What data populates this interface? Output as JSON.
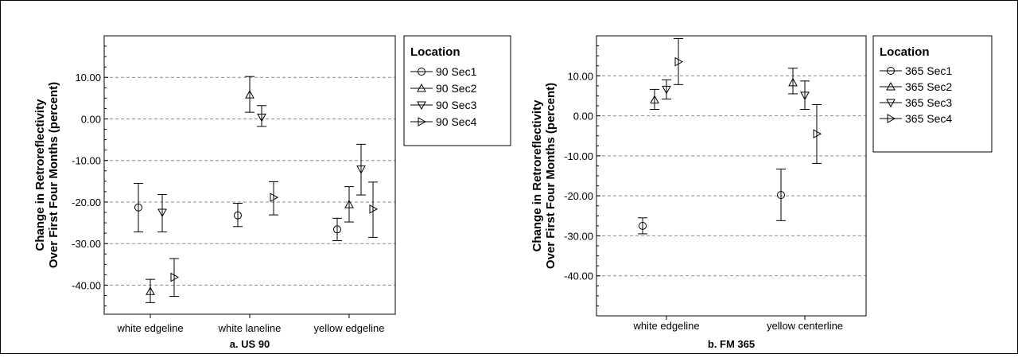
{
  "chart_data": [
    {
      "type": "scatter",
      "caption": "a. US 90",
      "ylabel": "Change in Retroreflectivity Over First Four Months (percent)",
      "ylim": [
        -47,
        20
      ],
      "yticks": [
        10,
        0,
        -10,
        -20,
        -30,
        -40
      ],
      "yticklabels": [
        "10.00",
        "0.00",
        "-10.00",
        "-20.00",
        "-30.00",
        "-40.00"
      ],
      "grid": true,
      "legend": {
        "title": "Location",
        "position": "right"
      },
      "categories": [
        "white edgeline",
        "white laneline",
        "yellow edgeline"
      ],
      "series": [
        {
          "name": "90 Sec1",
          "marker": "circle",
          "points": [
            {
              "category": "white edgeline",
              "value": -21.3,
              "low": -27.2,
              "high": -15.5
            },
            {
              "category": "white laneline",
              "value": -23.2,
              "low": -25.9,
              "high": -20.3
            },
            {
              "category": "yellow edgeline",
              "value": -26.6,
              "low": -29.3,
              "high": -23.9
            }
          ]
        },
        {
          "name": "90 Sec2",
          "marker": "triangle-up",
          "points": [
            {
              "category": "white edgeline",
              "value": -41.5,
              "low": -44.2,
              "high": -38.6
            },
            {
              "category": "white laneline",
              "value": 5.8,
              "low": 1.6,
              "high": 10.2
            },
            {
              "category": "yellow edgeline",
              "value": -20.6,
              "low": -24.8,
              "high": -16.3
            }
          ]
        },
        {
          "name": "90 Sec3",
          "marker": "triangle-down",
          "points": [
            {
              "category": "white edgeline",
              "value": -22.5,
              "low": -27.2,
              "high": -18.2
            },
            {
              "category": "white laneline",
              "value": 0.4,
              "low": -1.8,
              "high": 3.2
            },
            {
              "category": "yellow edgeline",
              "value": -12.1,
              "low": -18.3,
              "high": -6.1
            }
          ]
        },
        {
          "name": "90 Sec4",
          "marker": "triangle-right",
          "points": [
            {
              "category": "white edgeline",
              "value": -38.1,
              "low": -42.7,
              "high": -33.6
            },
            {
              "category": "white laneline",
              "value": -18.9,
              "low": -23.1,
              "high": -15.1
            },
            {
              "category": "yellow edgeline",
              "value": -21.7,
              "low": -28.5,
              "high": -15.2
            }
          ]
        }
      ]
    },
    {
      "type": "scatter",
      "caption": "b. FM 365",
      "ylabel": "Change in Retroreflectivity Over First Four Months (percent)",
      "ylim": [
        -50,
        20
      ],
      "yticks": [
        10,
        0,
        -10,
        -20,
        -30,
        -40
      ],
      "yticklabels": [
        "10.00",
        "0.00",
        "-10.00",
        "-20.00",
        "-30.00",
        "-40.00"
      ],
      "grid": true,
      "legend": {
        "title": "Location",
        "position": "right"
      },
      "categories": [
        "white edgeline",
        "yellow centerline"
      ],
      "series": [
        {
          "name": "365 Sec1",
          "marker": "circle",
          "points": [
            {
              "category": "white edgeline",
              "value": -27.5,
              "low": -29.5,
              "high": -25.5
            },
            {
              "category": "yellow centerline",
              "value": -19.8,
              "low": -26.2,
              "high": -13.3
            }
          ]
        },
        {
          "name": "365 Sec2",
          "marker": "triangle-up",
          "points": [
            {
              "category": "white edgeline",
              "value": 4.0,
              "low": 1.6,
              "high": 6.6
            },
            {
              "category": "yellow centerline",
              "value": 8.3,
              "low": 5.5,
              "high": 11.9
            }
          ]
        },
        {
          "name": "365 Sec3",
          "marker": "triangle-down",
          "points": [
            {
              "category": "white edgeline",
              "value": 6.6,
              "low": 4.2,
              "high": 9.0
            },
            {
              "category": "yellow centerline",
              "value": 5.1,
              "low": 1.6,
              "high": 8.7
            }
          ]
        },
        {
          "name": "365 Sec4",
          "marker": "triangle-right",
          "points": [
            {
              "category": "white edgeline",
              "value": 13.5,
              "low": 7.8,
              "high": 19.3
            },
            {
              "category": "yellow centerline",
              "value": -4.5,
              "low": -11.9,
              "high": 2.8
            }
          ]
        }
      ]
    }
  ]
}
